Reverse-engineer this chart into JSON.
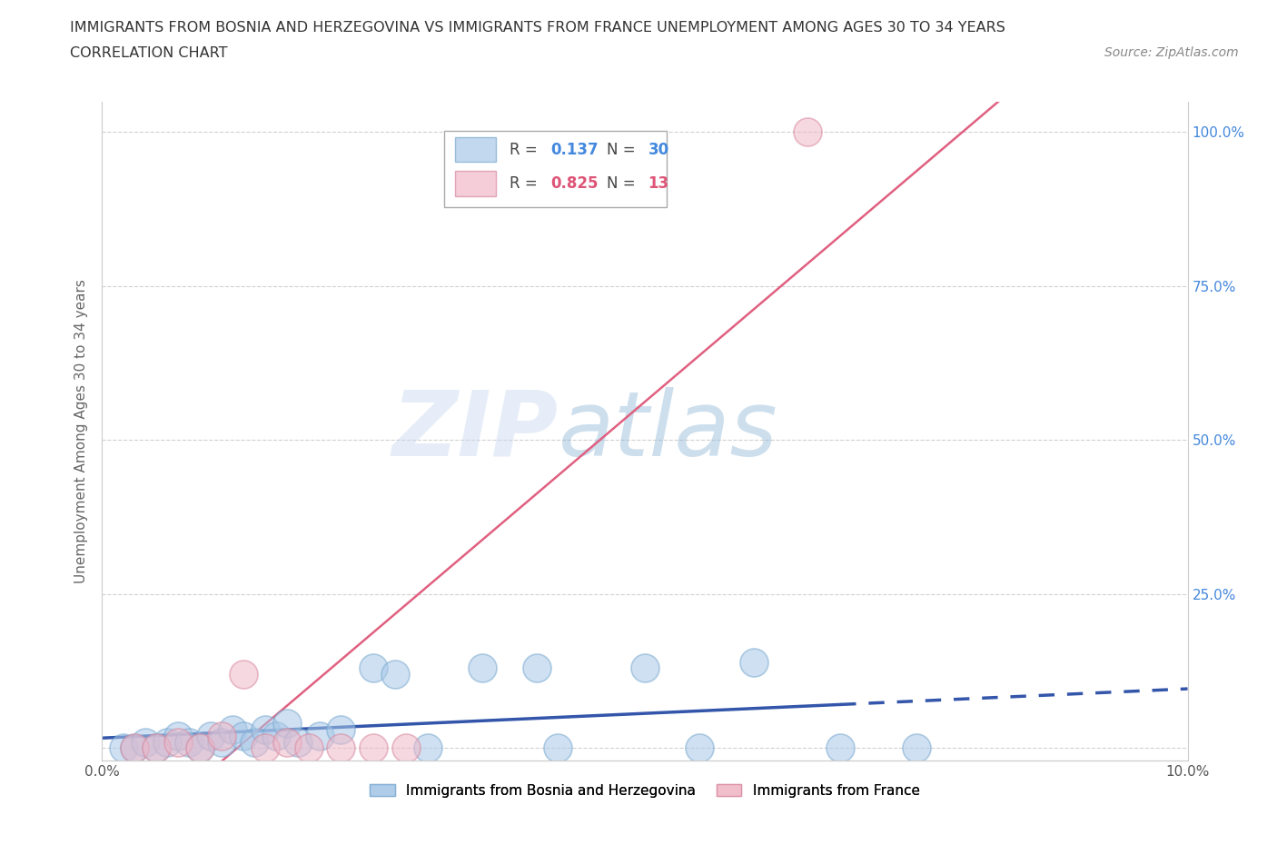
{
  "title_line1": "IMMIGRANTS FROM BOSNIA AND HERZEGOVINA VS IMMIGRANTS FROM FRANCE UNEMPLOYMENT AMONG AGES 30 TO 34 YEARS",
  "title_line2": "CORRELATION CHART",
  "source": "Source: ZipAtlas.com",
  "ylabel": "Unemployment Among Ages 30 to 34 years",
  "xlim": [
    0.0,
    0.1
  ],
  "ylim": [
    -0.02,
    1.05
  ],
  "bosnia_color": "#a8c8e8",
  "bosnia_edge_color": "#7aaad0",
  "france_color": "#f0b8c8",
  "france_edge_color": "#d88aa0",
  "bosnia_R": 0.137,
  "bosnia_N": 30,
  "france_R": 0.825,
  "france_N": 13,
  "bosnia_line_color": "#3355aa",
  "france_line_color": "#e06080",
  "watermark_zip": "ZIP",
  "watermark_atlas": "atlas",
  "bosnia_x": [
    0.002,
    0.003,
    0.004,
    0.005,
    0.006,
    0.007,
    0.008,
    0.009,
    0.01,
    0.011,
    0.012,
    0.013,
    0.014,
    0.015,
    0.016,
    0.017,
    0.018,
    0.02,
    0.022,
    0.025,
    0.027,
    0.03,
    0.035,
    0.04,
    0.042,
    0.05,
    0.055,
    0.06,
    0.068,
    0.075
  ],
  "bosnia_y": [
    0.0,
    0.0,
    0.01,
    0.0,
    0.01,
    0.02,
    0.01,
    0.0,
    0.02,
    0.01,
    0.03,
    0.02,
    0.01,
    0.03,
    0.02,
    0.04,
    0.01,
    0.02,
    0.03,
    0.13,
    0.12,
    0.0,
    0.13,
    0.13,
    0.0,
    0.13,
    0.0,
    0.14,
    0.0,
    0.0
  ],
  "france_x": [
    0.003,
    0.005,
    0.007,
    0.009,
    0.011,
    0.013,
    0.015,
    0.017,
    0.019,
    0.022,
    0.025,
    0.028,
    0.065
  ],
  "france_y": [
    0.0,
    0.0,
    0.01,
    0.0,
    0.02,
    0.12,
    0.0,
    0.01,
    0.0,
    0.0,
    0.0,
    0.0,
    1.0
  ],
  "grid_color": "#cccccc",
  "background_color": "#ffffff",
  "r_label_color": "#333333",
  "n_value_color_bosnia": "#4488dd",
  "n_value_color_france": "#dd5577"
}
